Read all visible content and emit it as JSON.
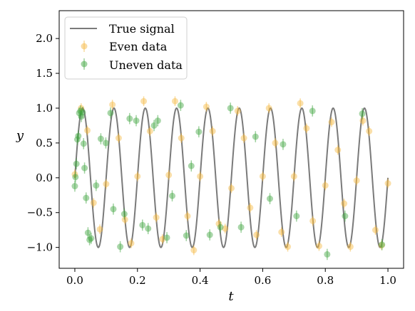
{
  "chart_data": {
    "type": "scatter",
    "xlabel": "t",
    "ylabel": "y",
    "xlim": [
      -0.05,
      1.05
    ],
    "ylim": [
      -1.3,
      2.4
    ],
    "x_ticks": [
      "0.0",
      "0.2",
      "0.4",
      "0.6",
      "0.8",
      "1.0"
    ],
    "y_ticks": [
      "−1.0",
      "−0.5",
      "0.0",
      "0.5",
      "1.0",
      "1.5",
      "2.0"
    ],
    "grid": false,
    "legend_position": "top-left",
    "colors": {
      "true_signal": "#7a7a7a",
      "even": "#f5b841",
      "uneven": "#3fa53f",
      "axes": "#000000"
    },
    "series": [
      {
        "name": "True signal",
        "kind": "line",
        "function": "sin(2*pi*10*t)",
        "t_range": [
          0,
          1
        ]
      },
      {
        "name": "Even data",
        "kind": "points",
        "x": [
          0.0,
          0.02,
          0.04,
          0.06,
          0.08,
          0.1,
          0.12,
          0.14,
          0.16,
          0.18,
          0.2,
          0.22,
          0.24,
          0.26,
          0.28,
          0.3,
          0.32,
          0.34,
          0.36,
          0.38,
          0.4,
          0.42,
          0.44,
          0.46,
          0.48,
          0.5,
          0.52,
          0.54,
          0.56,
          0.58,
          0.6,
          0.62,
          0.64,
          0.66,
          0.68,
          0.7,
          0.72,
          0.74,
          0.76,
          0.78,
          0.8,
          0.82,
          0.84,
          0.86,
          0.88,
          0.9,
          0.92,
          0.94,
          0.96,
          0.98,
          1.0
        ],
        "y": [
          0.05,
          1.0,
          0.68,
          -0.36,
          -0.74,
          -0.09,
          1.05,
          0.57,
          -0.6,
          -0.94,
          0.02,
          1.1,
          0.67,
          -0.57,
          -0.88,
          0.04,
          1.1,
          0.57,
          -0.55,
          -1.04,
          0.02,
          1.02,
          0.67,
          -0.66,
          -0.73,
          -0.15,
          0.96,
          0.57,
          -0.43,
          -0.82,
          0.02,
          1.0,
          0.5,
          -0.78,
          -0.99,
          0.02,
          1.07,
          0.71,
          -0.62,
          -0.98,
          -0.11,
          0.8,
          0.4,
          -0.37,
          -0.99,
          -0.04,
          0.82,
          0.67,
          -0.75,
          -0.97,
          -0.08
        ],
        "yerr": 0.07
      },
      {
        "name": "Uneven data",
        "kind": "points",
        "x": [
          0.0,
          0.002,
          0.005,
          0.008,
          0.011,
          0.014,
          0.018,
          0.021,
          0.025,
          0.028,
          0.031,
          0.036,
          0.042,
          0.047,
          0.052,
          0.068,
          0.083,
          0.099,
          0.114,
          0.123,
          0.145,
          0.158,
          0.175,
          0.196,
          0.216,
          0.234,
          0.253,
          0.265,
          0.294,
          0.311,
          0.338,
          0.356,
          0.372,
          0.396,
          0.431,
          0.465,
          0.497,
          0.531,
          0.577,
          0.623,
          0.665,
          0.708,
          0.759,
          0.806,
          0.863,
          0.918,
          0.981
        ],
        "y": [
          -0.12,
          0.01,
          0.2,
          0.55,
          0.6,
          0.93,
          0.96,
          0.88,
          0.94,
          0.49,
          0.14,
          -0.29,
          -0.79,
          -0.89,
          -0.87,
          -0.11,
          0.56,
          0.5,
          0.93,
          -0.45,
          -0.99,
          -0.52,
          0.85,
          0.82,
          -0.68,
          -0.73,
          0.75,
          0.82,
          -0.86,
          -0.26,
          1.04,
          -0.83,
          0.17,
          0.66,
          -0.82,
          -0.71,
          1.0,
          -0.71,
          0.59,
          -0.3,
          0.48,
          -0.55,
          0.96,
          -1.1,
          -0.55,
          0.92,
          -0.96
        ],
        "yerr": 0.08
      }
    ]
  }
}
